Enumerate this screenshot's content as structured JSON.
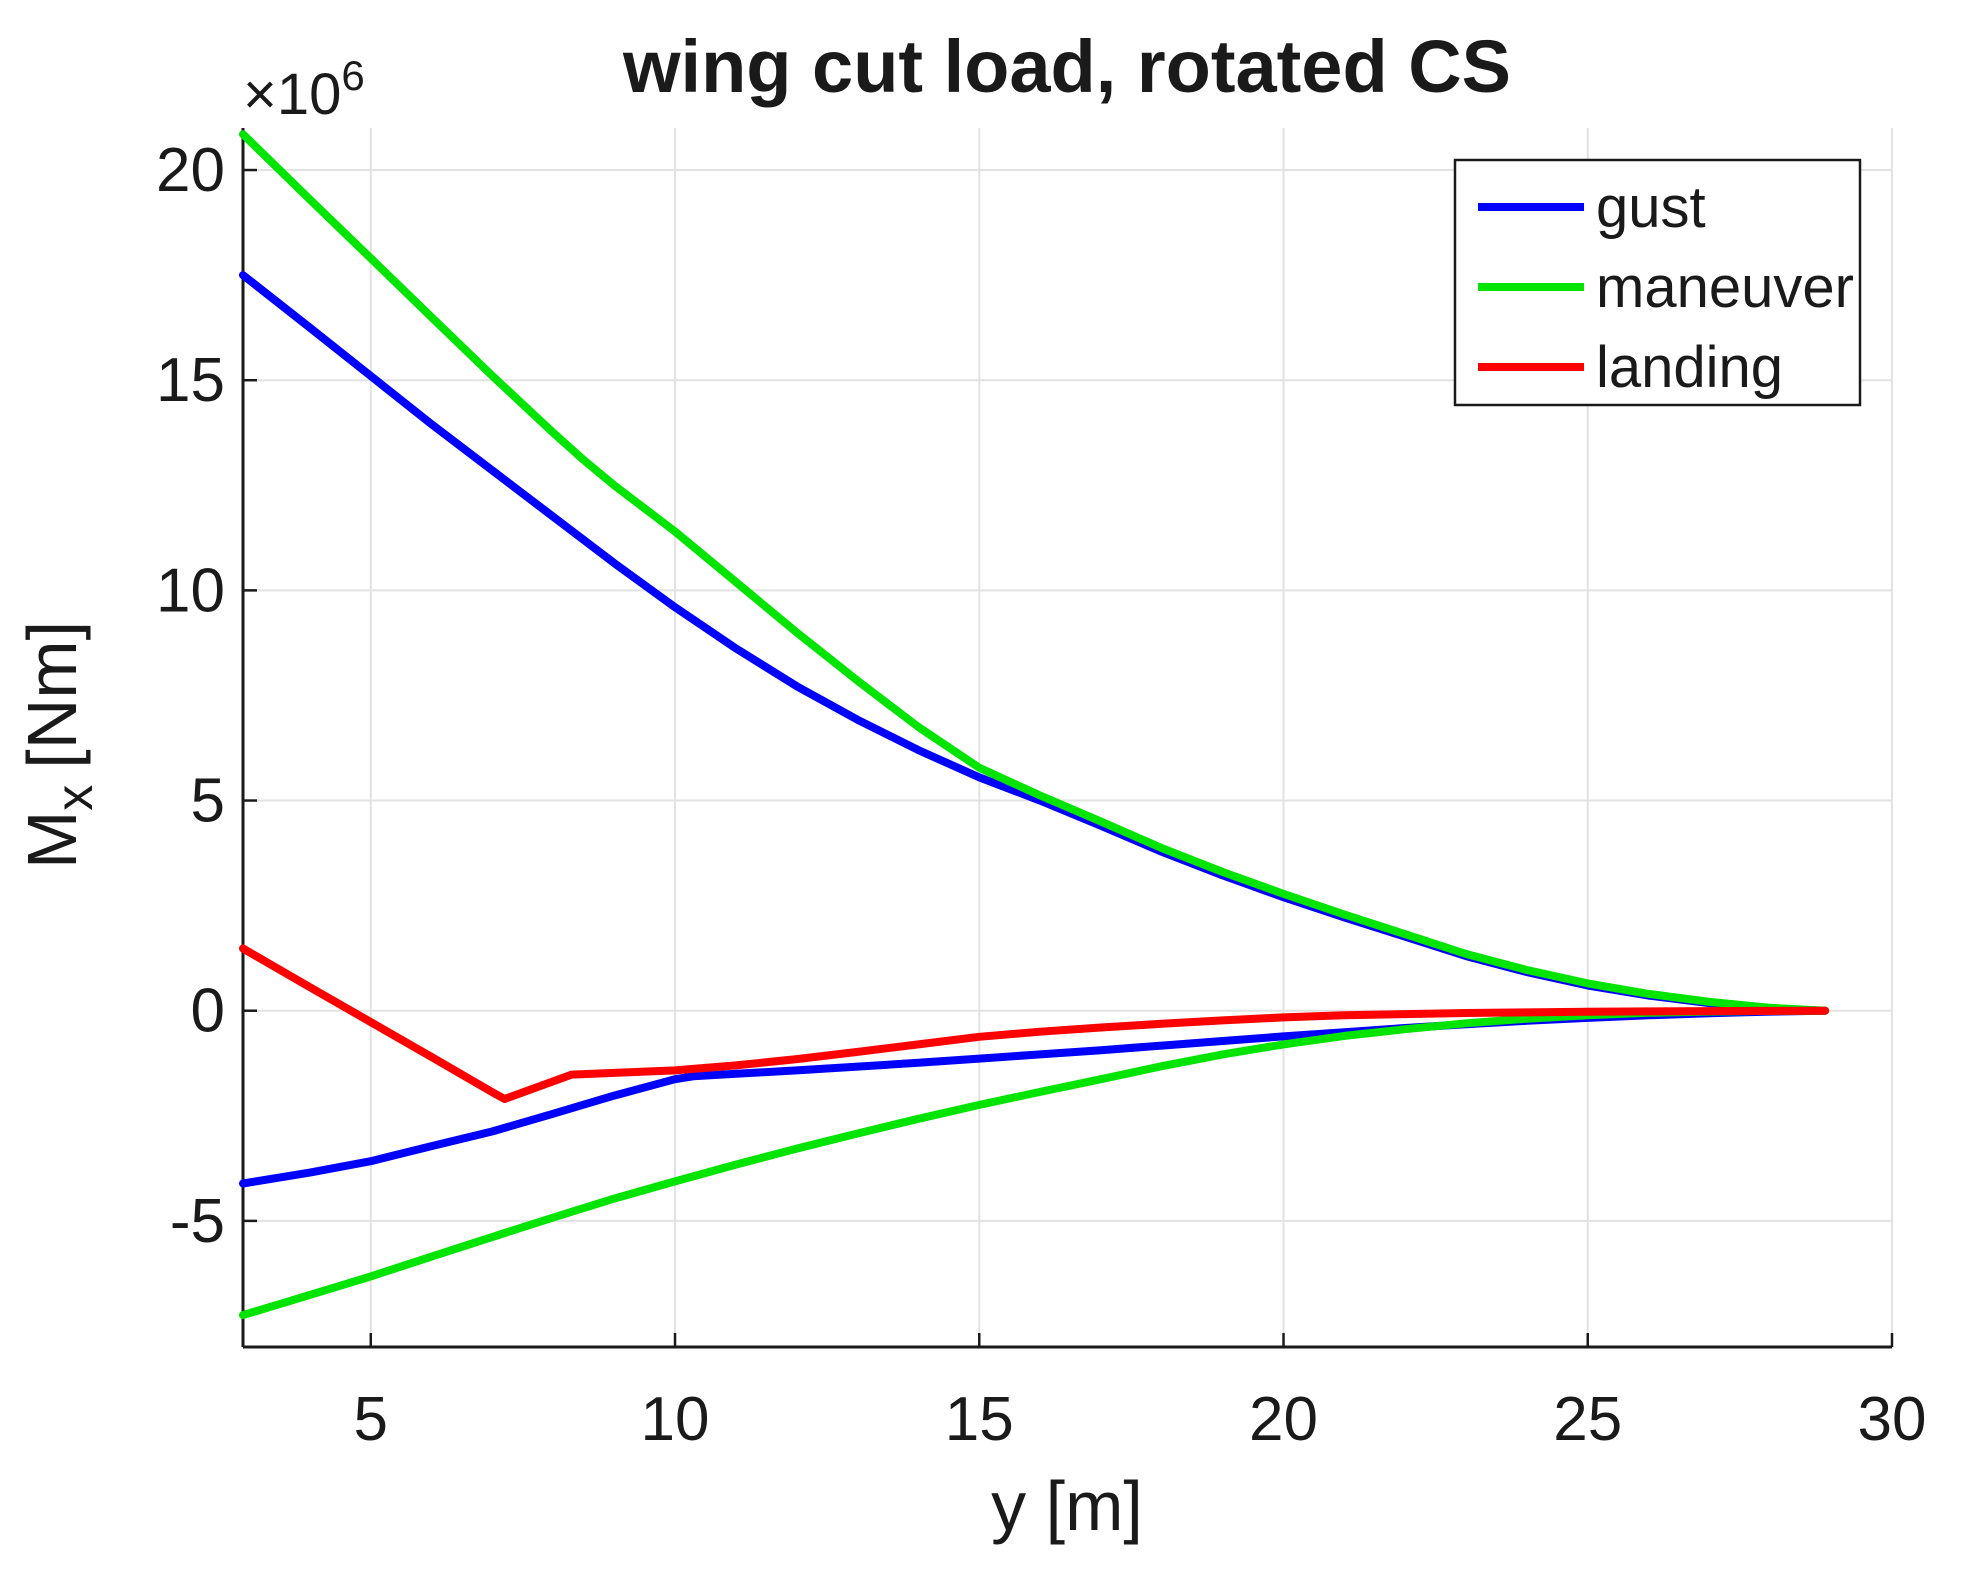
{
  "title": "wing cut load, rotated CS",
  "axes": {
    "xlabel": "y [m]",
    "ylabel_base": "M",
    "ylabel_sub": "x",
    "ylabel_unit": "[Nm]",
    "exponent_label": "×10",
    "exponent_value": "6"
  },
  "colors": {
    "gust": "#0000ff",
    "maneuver": "#00e400",
    "landing": "#ff0000",
    "grid": "#e2e2e2",
    "axis": "#1a1a1a",
    "background": "#ffffff",
    "legend_border": "#1a1a1a"
  },
  "legend": {
    "entries": [
      {
        "label": "gust",
        "color": "#0000ff"
      },
      {
        "label": "maneuver",
        "color": "#00e400"
      },
      {
        "label": "landing",
        "color": "#ff0000"
      }
    ]
  },
  "chart_data": {
    "type": "line",
    "title": "wing cut load, rotated CS",
    "xlabel": "y [m]",
    "ylabel": "M_x [Nm]",
    "y_unit_exponent": 6,
    "grid": true,
    "legend_position": "inside top-right",
    "xlim": [
      2.9,
      30
    ],
    "ylim_1e6": [
      -8,
      21
    ],
    "x_ticks": [
      5,
      10,
      15,
      20,
      25,
      30
    ],
    "y_ticks_1e6": [
      20,
      15,
      10,
      5,
      0,
      -5
    ],
    "series": [
      {
        "name": "gust",
        "branch": "upper",
        "color": "#0000ff",
        "x": [
          2.9,
          4,
          5,
          6,
          7,
          8,
          9,
          10,
          11,
          12,
          13,
          14,
          15,
          16,
          17,
          18,
          19,
          20,
          21,
          22,
          23,
          24,
          25,
          26,
          27,
          28,
          28.9
        ],
        "y_1e6": [
          17.5,
          16.25,
          15.1,
          13.95,
          12.85,
          11.75,
          10.65,
          9.6,
          8.62,
          7.72,
          6.92,
          6.2,
          5.55,
          5.0,
          4.4,
          3.78,
          3.22,
          2.7,
          2.22,
          1.76,
          1.3,
          0.92,
          0.6,
          0.36,
          0.18,
          0.05,
          0
        ]
      },
      {
        "name": "gust",
        "branch": "lower",
        "color": "#0000ff",
        "x": [
          2.9,
          4,
          5,
          6,
          7,
          8,
          9,
          10,
          10.3,
          11,
          12,
          13,
          14,
          15,
          16,
          17,
          18,
          19,
          20,
          21,
          22,
          23,
          24,
          25,
          26,
          27,
          28,
          28.9
        ],
        "y_1e6": [
          -4.11,
          -3.85,
          -3.58,
          -3.22,
          -2.87,
          -2.45,
          -2.02,
          -1.63,
          -1.56,
          -1.5,
          -1.42,
          -1.33,
          -1.24,
          -1.14,
          -1.04,
          -0.94,
          -0.83,
          -0.72,
          -0.61,
          -0.51,
          -0.41,
          -0.32,
          -0.24,
          -0.17,
          -0.11,
          -0.06,
          -0.02,
          0
        ]
      },
      {
        "name": "maneuver",
        "branch": "upper",
        "color": "#00e400",
        "x": [
          2.9,
          4,
          5,
          6,
          7,
          8,
          8.5,
          9,
          10,
          11,
          12,
          13,
          14,
          15,
          16,
          17,
          18,
          19,
          20,
          21,
          22,
          23,
          24,
          25,
          26,
          27,
          28,
          28.9
        ],
        "y_1e6": [
          20.85,
          19.3,
          17.9,
          16.5,
          15.1,
          13.75,
          13.1,
          12.5,
          11.4,
          10.2,
          9.0,
          7.85,
          6.75,
          5.78,
          5.12,
          4.5,
          3.87,
          3.3,
          2.78,
          2.29,
          1.82,
          1.35,
          0.97,
          0.65,
          0.4,
          0.21,
          0.07,
          0
        ]
      },
      {
        "name": "maneuver",
        "branch": "lower",
        "color": "#00e400",
        "x": [
          2.9,
          4,
          5,
          6,
          7,
          8,
          9,
          10,
          11,
          12,
          13,
          14,
          15,
          16,
          17,
          18,
          19,
          20,
          21,
          22,
          23,
          24,
          25,
          26,
          27,
          28,
          28.9
        ],
        "y_1e6": [
          -7.24,
          -6.76,
          -6.32,
          -5.85,
          -5.38,
          -4.92,
          -4.47,
          -4.06,
          -3.66,
          -3.28,
          -2.92,
          -2.57,
          -2.24,
          -1.93,
          -1.63,
          -1.32,
          -1.04,
          -0.8,
          -0.6,
          -0.44,
          -0.3,
          -0.19,
          -0.11,
          -0.05,
          -0.02,
          -0.005,
          0
        ]
      },
      {
        "name": "landing",
        "branch": "envelope",
        "color": "#ff0000",
        "x": [
          2.9,
          4,
          5,
          6,
          7,
          7.2,
          8.3,
          9,
          10,
          11,
          12,
          13,
          14,
          15,
          16,
          17,
          18,
          19,
          20,
          21,
          22,
          23,
          24,
          25,
          26,
          27,
          28,
          28.9
        ],
        "y_1e6": [
          1.48,
          0.56,
          -0.27,
          -1.1,
          -1.94,
          -2.1,
          -1.52,
          -1.48,
          -1.42,
          -1.3,
          -1.15,
          -0.98,
          -0.8,
          -0.62,
          -0.5,
          -0.4,
          -0.31,
          -0.23,
          -0.16,
          -0.11,
          -0.08,
          -0.055,
          -0.04,
          -0.025,
          -0.015,
          -0.008,
          -0.003,
          0
        ]
      }
    ]
  }
}
